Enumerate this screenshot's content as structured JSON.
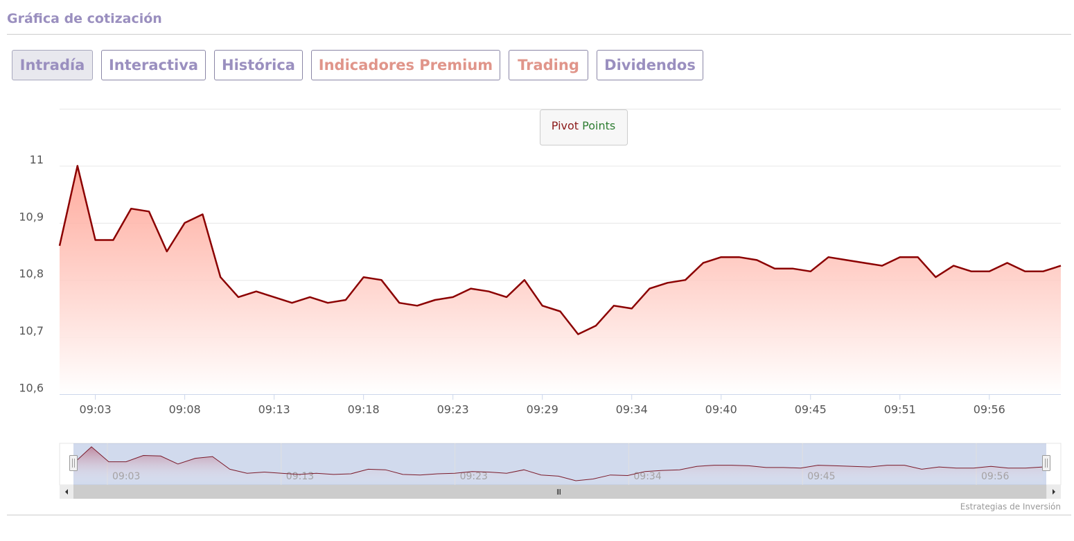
{
  "header": {
    "title": "Gráfica de cotización"
  },
  "tabs": [
    {
      "label": "Intradía",
      "color": "#9a8fbf",
      "active": true
    },
    {
      "label": "Interactiva",
      "color": "#9a8fbf"
    },
    {
      "label": "Histórica",
      "color": "#9a8fbf"
    },
    {
      "label": "Indicadores Premium",
      "color": "#e0958a"
    },
    {
      "label": "Trading",
      "color": "#e0958a"
    },
    {
      "label": "Dividendos",
      "color": "#9a8fbf"
    }
  ],
  "pivot_button": {
    "word1": "Pivot",
    "word2": "Points"
  },
  "chart_data": {
    "type": "area",
    "categories": [
      null,
      null,
      "09:03",
      null,
      null,
      null,
      null,
      "09:08",
      null,
      null,
      null,
      null,
      "09:13",
      null,
      null,
      null,
      null,
      "09:18",
      null,
      null,
      null,
      null,
      "09:23",
      null,
      null,
      null,
      null,
      "09:29",
      null,
      null,
      null,
      null,
      "09:34",
      null,
      null,
      null,
      null,
      "09:40",
      null,
      null,
      null,
      null,
      "09:45",
      null,
      null,
      null,
      null,
      "09:51",
      null,
      null,
      null,
      null,
      "09:56",
      null,
      null,
      null,
      null
    ],
    "values": [
      10.86,
      11.0,
      10.87,
      10.87,
      10.925,
      10.92,
      10.85,
      10.9,
      10.915,
      10.805,
      10.77,
      10.78,
      10.77,
      10.76,
      10.77,
      10.76,
      10.765,
      10.805,
      10.8,
      10.76,
      10.755,
      10.765,
      10.77,
      10.785,
      10.78,
      10.77,
      10.8,
      10.755,
      10.745,
      10.705,
      10.72,
      10.755,
      10.75,
      10.785,
      10.795,
      10.8,
      10.83,
      10.84,
      10.84,
      10.835,
      10.82,
      10.82,
      10.815,
      10.84,
      10.835,
      10.83,
      10.825,
      10.84,
      10.84,
      10.805,
      10.825,
      10.815,
      10.815,
      10.83,
      10.815,
      10.815,
      10.825
    ],
    "color": "#8b0000",
    "ylim": [
      10.6,
      11.1
    ],
    "yticks": [
      {
        "value": 10.6,
        "label": "10,6"
      },
      {
        "value": 10.7,
        "label": "10,7"
      },
      {
        "value": 10.8,
        "label": "10,8"
      },
      {
        "value": 10.9,
        "label": "10,9"
      },
      11
    ],
    "grid": true
  },
  "navigator": {
    "labels": [
      "09:03",
      "09:13",
      "09:23",
      "09:34",
      "09:45",
      "09:56"
    ]
  },
  "credit": "Estrategias de Inversión"
}
